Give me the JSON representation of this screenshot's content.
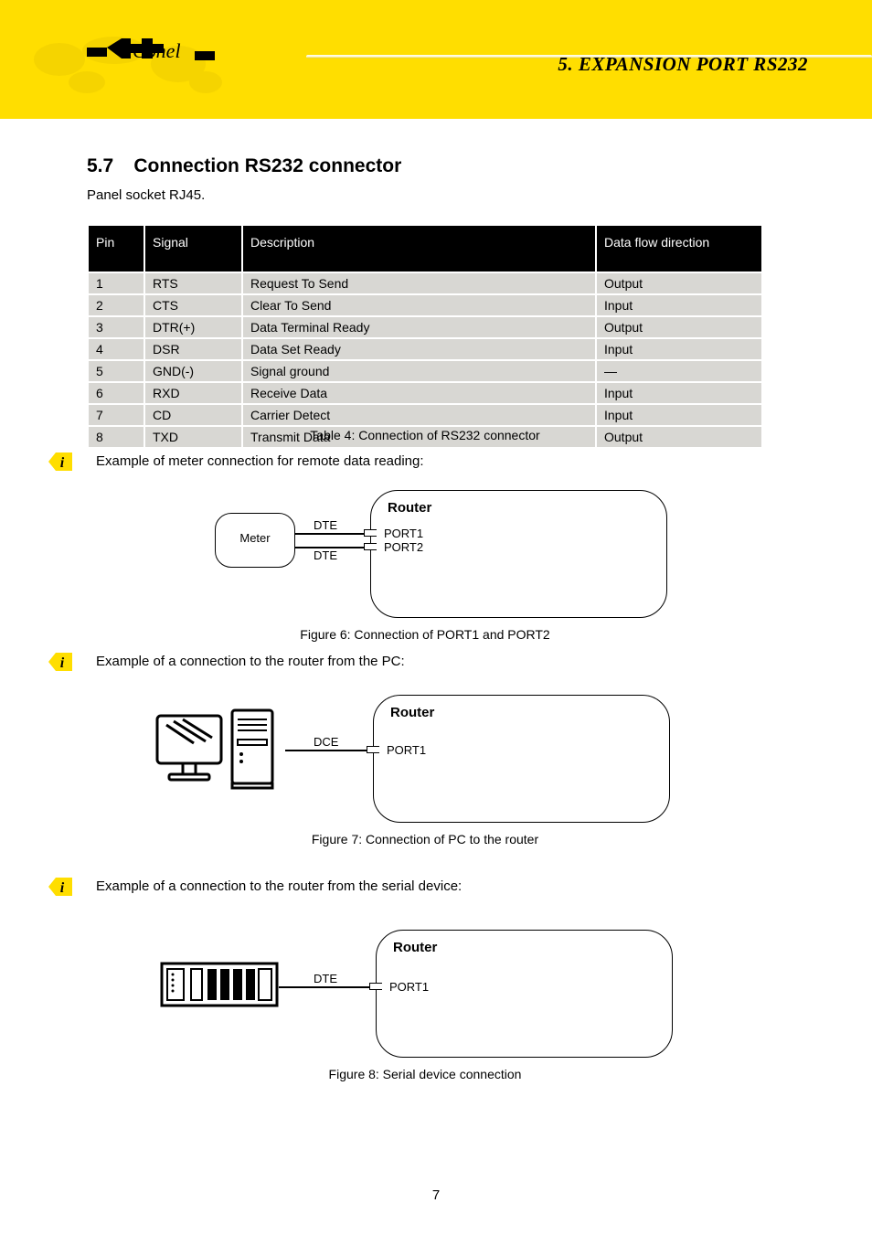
{
  "banner": {
    "chapter_ref": "5. EXPANSION PORT RS232",
    "logo_text": "Conel"
  },
  "section": {
    "number": "5.7",
    "title": "Connection RS232 connector",
    "intro": "Panel socket RJ45."
  },
  "table": {
    "headers": {
      "pin": "Pin",
      "signal": "Signal",
      "description": "Description",
      "direction": "Data flow direction"
    },
    "rows": [
      {
        "pin": "1",
        "signal": "RTS",
        "description": "Request To Send",
        "direction": "Output"
      },
      {
        "pin": "2",
        "signal": "CTS",
        "description": "Clear To Send",
        "direction": "Input"
      },
      {
        "pin": "3",
        "signal": "DTR(+)",
        "description": "Data Terminal Ready",
        "direction": "Output"
      },
      {
        "pin": "4",
        "signal": "DSR",
        "description": "Data Set Ready",
        "direction": "Input"
      },
      {
        "pin": "5",
        "signal": "GND(-)",
        "description": "Signal ground",
        "direction": "—"
      },
      {
        "pin": "6",
        "signal": "RXD",
        "description": "Receive Data",
        "direction": "Input"
      },
      {
        "pin": "7",
        "signal": "CD",
        "description": "Carrier Detect",
        "direction": "Input"
      },
      {
        "pin": "8",
        "signal": "TXD",
        "description": "Transmit Data",
        "direction": "Output"
      }
    ],
    "caption": "Table 4: Connection of RS232 connector"
  },
  "examples": {
    "ex1": {
      "text": "Example of meter connection for remote data reading:",
      "device_label": "Meter",
      "router_title": "Router",
      "port1": "PORT1",
      "port2": "PORT2",
      "dte1": "DTE",
      "dte2": "DTE",
      "caption": "Figure 6: Connection of PORT1 and PORT2"
    },
    "ex2": {
      "text": "Example of a connection to the router from the PC:",
      "router_title": "Router",
      "port": "PORT1",
      "dte": "DCE",
      "caption": "Figure 7: Connection of PC to the router"
    },
    "ex3": {
      "text": "Example of a connection to the router from the serial device:",
      "router_title": "Router",
      "port": "PORT1",
      "dte": "DTE",
      "caption": "Figure 8: Serial device connection"
    }
  },
  "page_number": "7",
  "colors": {
    "banner": "#ffde00",
    "table_row": "#d8d7d3",
    "table_header": "#000000"
  }
}
